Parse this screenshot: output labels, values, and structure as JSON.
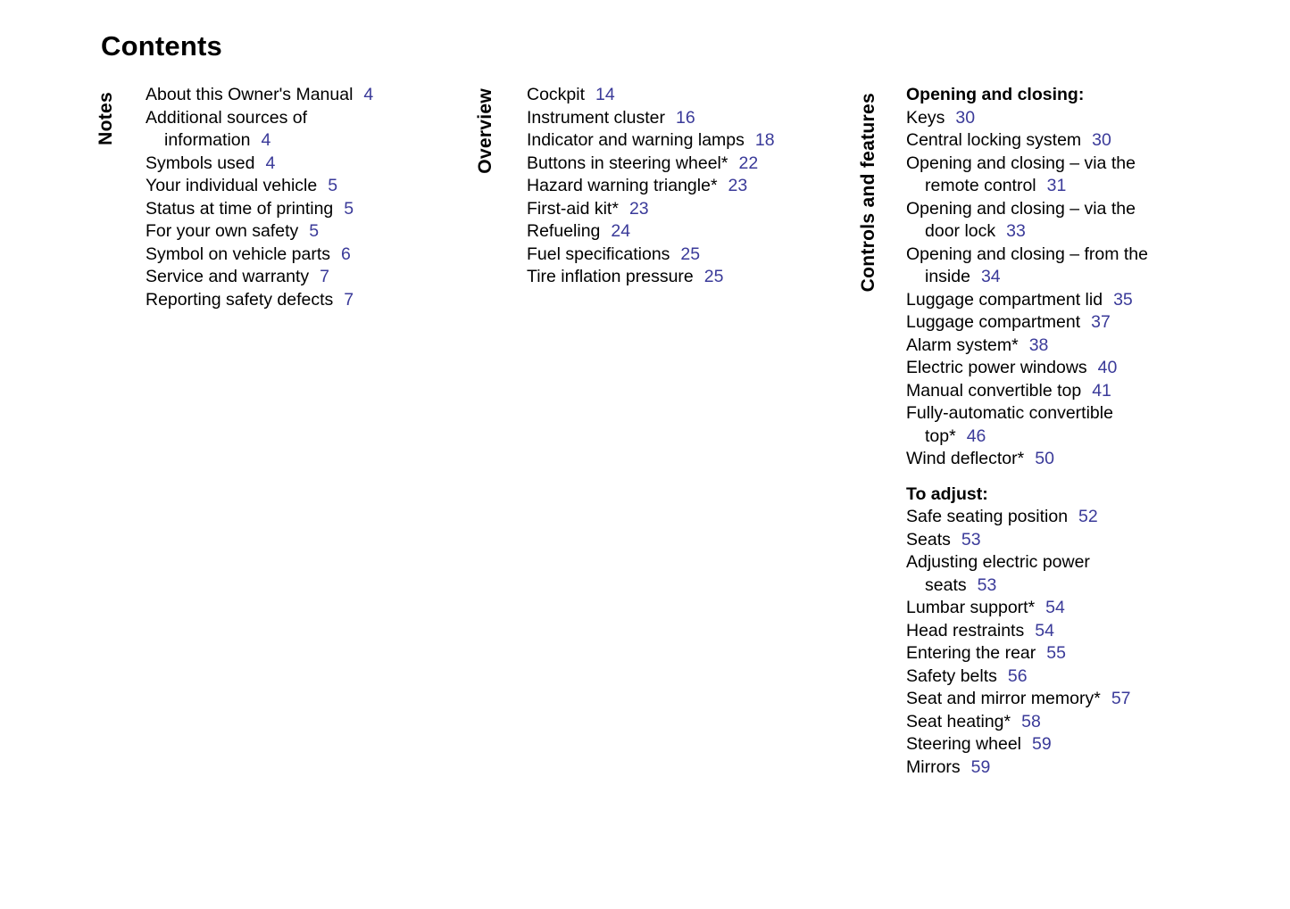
{
  "page": {
    "title": "Contents",
    "colors": {
      "background": "#ffffff",
      "text": "#000000",
      "page_number": "#3a3a99"
    }
  },
  "sections": [
    {
      "label": "Notes",
      "groups": [
        {
          "heading": null,
          "items": [
            {
              "lines": [
                "About this Owner's Manual"
              ],
              "page": "4"
            },
            {
              "lines": [
                "Additional sources of",
                "information"
              ],
              "page": "4"
            },
            {
              "lines": [
                "Symbols used"
              ],
              "page": "4"
            },
            {
              "lines": [
                "Your individual vehicle"
              ],
              "page": "5"
            },
            {
              "lines": [
                "Status at time of printing"
              ],
              "page": "5"
            },
            {
              "lines": [
                "For your own safety"
              ],
              "page": "5"
            },
            {
              "lines": [
                "Symbol on vehicle parts"
              ],
              "page": "6"
            },
            {
              "lines": [
                "Service and warranty"
              ],
              "page": "7"
            },
            {
              "lines": [
                "Reporting safety defects"
              ],
              "page": "7"
            }
          ]
        }
      ]
    },
    {
      "label": "Overview",
      "groups": [
        {
          "heading": null,
          "items": [
            {
              "lines": [
                "Cockpit"
              ],
              "page": "14"
            },
            {
              "lines": [
                "Instrument cluster"
              ],
              "page": "16"
            },
            {
              "lines": [
                "Indicator and warning lamps"
              ],
              "page": "18"
            },
            {
              "lines": [
                "Buttons in steering wheel*"
              ],
              "page": "22"
            },
            {
              "lines": [
                "Hazard warning triangle*"
              ],
              "page": "23"
            },
            {
              "lines": [
                "First-aid kit*"
              ],
              "page": "23"
            },
            {
              "lines": [
                "Refueling"
              ],
              "page": "24"
            },
            {
              "lines": [
                "Fuel specifications"
              ],
              "page": "25"
            },
            {
              "lines": [
                "Tire inflation pressure"
              ],
              "page": "25"
            }
          ]
        }
      ]
    },
    {
      "label": "Controls and features",
      "groups": [
        {
          "heading": "Opening and closing:",
          "items": [
            {
              "lines": [
                "Keys"
              ],
              "page": "30"
            },
            {
              "lines": [
                "Central locking system"
              ],
              "page": "30"
            },
            {
              "lines": [
                "Opening and closing – via the",
                "remote control"
              ],
              "page": "31"
            },
            {
              "lines": [
                "Opening and closing – via the",
                "door lock"
              ],
              "page": "33"
            },
            {
              "lines": [
                "Opening and closing – from the",
                "inside"
              ],
              "page": "34"
            },
            {
              "lines": [
                "Luggage compartment lid"
              ],
              "page": "35"
            },
            {
              "lines": [
                "Luggage compartment"
              ],
              "page": "37"
            },
            {
              "lines": [
                "Alarm system*"
              ],
              "page": "38"
            },
            {
              "lines": [
                "Electric power windows"
              ],
              "page": "40"
            },
            {
              "lines": [
                "Manual convertible top"
              ],
              "page": "41"
            },
            {
              "lines": [
                "Fully-automatic convertible",
                "top*"
              ],
              "page": "46"
            },
            {
              "lines": [
                "Wind deflector*"
              ],
              "page": "50"
            }
          ]
        },
        {
          "heading": "To adjust:",
          "items": [
            {
              "lines": [
                "Safe seating position"
              ],
              "page": "52"
            },
            {
              "lines": [
                "Seats"
              ],
              "page": "53"
            },
            {
              "lines": [
                "Adjusting electric power",
                "seats"
              ],
              "page": "53"
            },
            {
              "lines": [
                "Lumbar support*"
              ],
              "page": "54"
            },
            {
              "lines": [
                "Head restraints"
              ],
              "page": "54"
            },
            {
              "lines": [
                "Entering the rear"
              ],
              "page": "55"
            },
            {
              "lines": [
                "Safety belts"
              ],
              "page": "56"
            },
            {
              "lines": [
                "Seat and mirror memory*"
              ],
              "page": "57"
            },
            {
              "lines": [
                "Seat heating*"
              ],
              "page": "58"
            },
            {
              "lines": [
                "Steering wheel"
              ],
              "page": "59"
            },
            {
              "lines": [
                "Mirrors"
              ],
              "page": "59"
            }
          ]
        }
      ]
    }
  ]
}
